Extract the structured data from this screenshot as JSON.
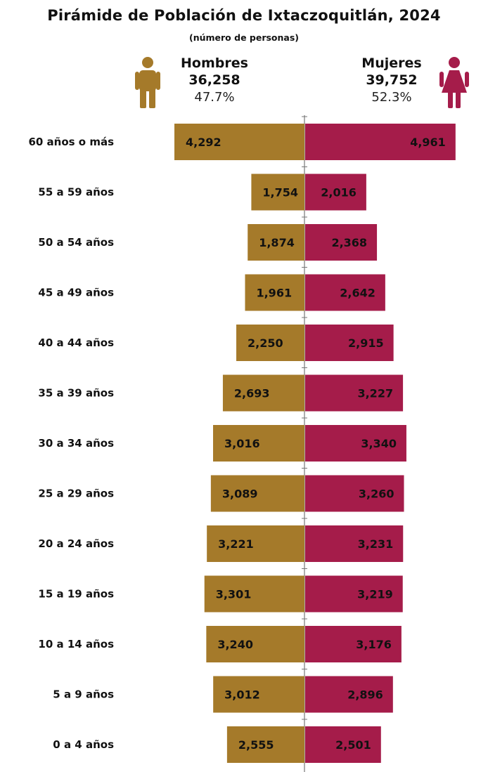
{
  "header": {
    "title": "Pirámide de Población de Ixtaczoquitlán, 2024",
    "subtitle": "(número de personas)"
  },
  "legend": {
    "men": {
      "name": "Hombres",
      "total": "36,258",
      "percent": "47.7%",
      "icon": "male-person-icon"
    },
    "women": {
      "name": "Mujeres",
      "total": "39,752",
      "percent": "52.3%",
      "icon": "female-person-icon"
    }
  },
  "colors": {
    "men": "#A57A2A",
    "women": "#A51C4A",
    "axis": "#777777"
  },
  "chart_data": {
    "type": "bar",
    "title": "Pirámide de Población de Ixtaczoquitlán, 2024",
    "subtitle": "(número de personas)",
    "orientation": "horizontal-diverging",
    "categories": [
      "60 años o más",
      "55 a 59 años",
      "50 a 54 años",
      "45 a 49 años",
      "40 a 44 años",
      "35 a 39 años",
      "30 a 34 años",
      "25 a 29 años",
      "20 a 24 años",
      "15 a 19 años",
      "10 a 14 años",
      "5 a 9 años",
      "0 a 4 años"
    ],
    "series": [
      {
        "name": "Hombres",
        "side": "left",
        "values": [
          4292,
          1754,
          1874,
          1961,
          2250,
          2693,
          3016,
          3089,
          3221,
          3301,
          3240,
          3012,
          2555
        ],
        "labels": [
          "4,292",
          "1,754",
          "1,874",
          "1,961",
          "2,250",
          "2,693",
          "3,016",
          "3,089",
          "3,221",
          "3,301",
          "3,240",
          "3,012",
          "2,555"
        ]
      },
      {
        "name": "Mujeres",
        "side": "right",
        "values": [
          4961,
          2016,
          2368,
          2642,
          2915,
          3227,
          3340,
          3260,
          3231,
          3219,
          3176,
          2896,
          2501
        ],
        "labels": [
          "4,961",
          "2,016",
          "2,368",
          "2,642",
          "2,915",
          "3,227",
          "3,340",
          "3,260",
          "3,231",
          "3,219",
          "3,176",
          "2,896",
          "2,501"
        ]
      }
    ],
    "grid": false,
    "legend_position": "top"
  }
}
